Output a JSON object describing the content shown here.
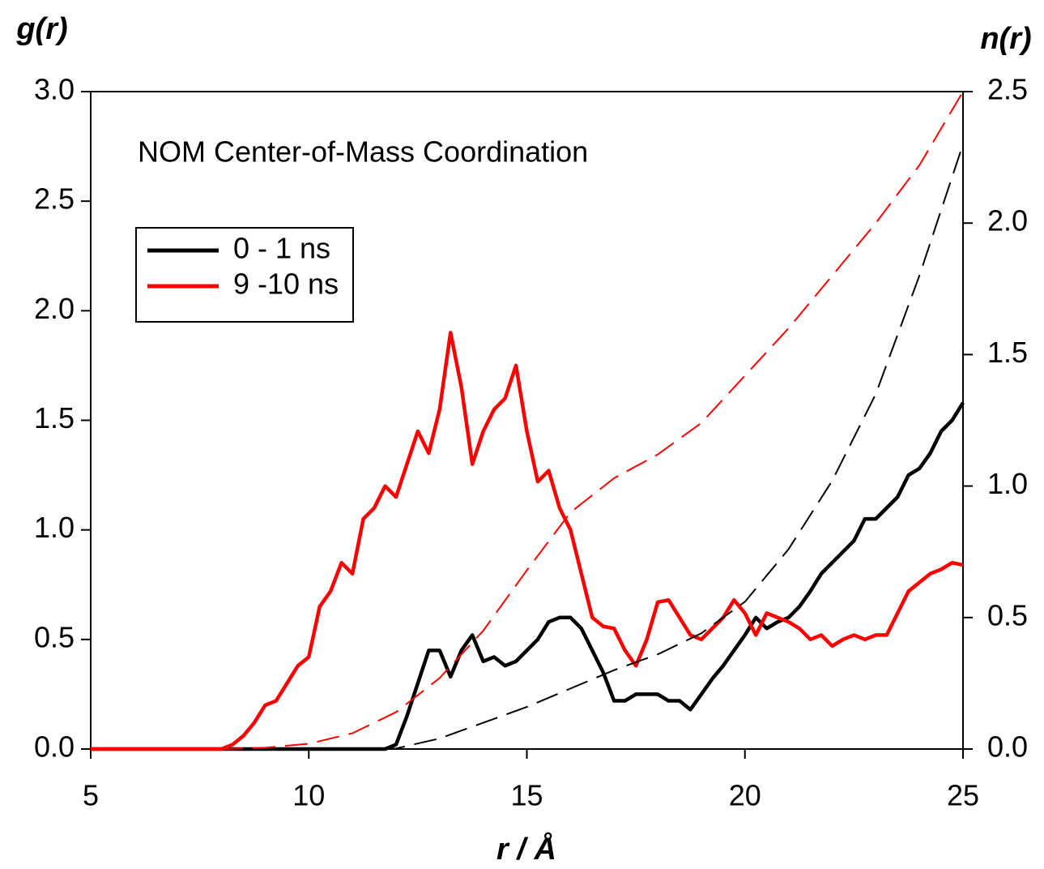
{
  "chart_data": {
    "type": "line",
    "title": "NOM Center-of-Mass Coordination",
    "y_label": "g(r)",
    "y2_label": "n(r)",
    "x_label": "r / Å",
    "xlim": [
      5,
      25
    ],
    "xticks": [
      5,
      10,
      15,
      20,
      25
    ],
    "ylim": [
      0,
      3
    ],
    "yticks": [
      {
        "value": 0,
        "label": "0.0"
      },
      {
        "value": 0.5,
        "label": "0.5"
      },
      {
        "value": 1,
        "label": "1.0"
      },
      {
        "value": 1.5,
        "label": "1.5"
      },
      {
        "value": 2,
        "label": "2.0"
      },
      {
        "value": 2.5,
        "label": "2.5"
      },
      {
        "value": 3,
        "label": "3.0"
      }
    ],
    "y2lim": [
      0,
      2.5
    ],
    "y2ticks": [
      {
        "value": 0,
        "label": "0.0"
      },
      {
        "value": 0.5,
        "label": "0.5"
      },
      {
        "value": 1,
        "label": "1.0"
      },
      {
        "value": 1.5,
        "label": "1.5"
      },
      {
        "value": 2,
        "label": "2.0"
      },
      {
        "value": 2.5,
        "label": "2.5"
      }
    ],
    "legend": "upper left",
    "series": [
      {
        "name": "0 - 1 ns",
        "color": "#000000",
        "dash": false,
        "x": [
          5,
          5.25,
          5.5,
          5.75,
          6,
          6.25,
          6.5,
          6.75,
          7,
          7.25,
          7.5,
          7.75,
          8,
          8.25,
          8.5,
          8.75,
          9,
          9.25,
          9.5,
          9.75,
          10,
          10.25,
          10.5,
          10.75,
          11,
          11.25,
          11.5,
          11.75,
          12,
          12.25,
          12.5,
          12.75,
          13,
          13.25,
          13.5,
          13.75,
          14,
          14.25,
          14.5,
          14.75,
          15,
          15.25,
          15.5,
          15.75,
          16,
          16.25,
          16.5,
          16.75,
          17,
          17.25,
          17.5,
          17.75,
          18,
          18.25,
          18.5,
          18.75,
          19,
          19.25,
          19.5,
          19.75,
          20,
          20.25,
          20.5,
          20.75,
          21,
          21.25,
          21.5,
          21.75,
          22,
          22.25,
          22.5,
          22.75,
          23,
          23.25,
          23.5,
          23.75,
          24,
          24.25,
          24.5,
          24.75,
          25
        ],
        "values": [
          0,
          0,
          0,
          0,
          0,
          0,
          0,
          0,
          0,
          0,
          0,
          0,
          0,
          0,
          0,
          0,
          0,
          0,
          0,
          0,
          0,
          0,
          0,
          0,
          0,
          0,
          0,
          0,
          0.02,
          0.15,
          0.3,
          0.45,
          0.45,
          0.33,
          0.45,
          0.52,
          0.4,
          0.42,
          0.38,
          0.4,
          0.45,
          0.5,
          0.58,
          0.6,
          0.6,
          0.55,
          0.45,
          0.35,
          0.22,
          0.22,
          0.25,
          0.25,
          0.25,
          0.22,
          0.22,
          0.18,
          0.25,
          0.32,
          0.38,
          0.45,
          0.52,
          0.6,
          0.55,
          0.58,
          0.6,
          0.65,
          0.72,
          0.8,
          0.85,
          0.9,
          0.95,
          1.05,
          1.05,
          1.1,
          1.15,
          1.25,
          1.28,
          1.35,
          1.45,
          1.5,
          1.58
        ]
      },
      {
        "name": "9 -10 ns",
        "color": "#ff0000",
        "dash": false,
        "x": [
          5,
          5.25,
          5.5,
          5.75,
          6,
          6.25,
          6.5,
          6.75,
          7,
          7.25,
          7.5,
          7.75,
          8,
          8.25,
          8.5,
          8.75,
          9,
          9.25,
          9.5,
          9.75,
          10,
          10.25,
          10.5,
          10.75,
          11,
          11.25,
          11.5,
          11.75,
          12,
          12.25,
          12.5,
          12.75,
          13,
          13.25,
          13.5,
          13.75,
          14,
          14.25,
          14.5,
          14.75,
          15,
          15.25,
          15.5,
          15.75,
          16,
          16.25,
          16.5,
          16.75,
          17,
          17.25,
          17.5,
          17.75,
          18,
          18.25,
          18.5,
          18.75,
          19,
          19.25,
          19.5,
          19.75,
          20,
          20.25,
          20.5,
          20.75,
          21,
          21.25,
          21.5,
          21.75,
          22,
          22.25,
          22.5,
          22.75,
          23,
          23.25,
          23.5,
          23.75,
          24,
          24.25,
          24.5,
          24.75,
          25
        ],
        "values": [
          0,
          0,
          0,
          0,
          0,
          0,
          0,
          0,
          0,
          0,
          0,
          0,
          0,
          0.02,
          0.06,
          0.12,
          0.2,
          0.22,
          0.3,
          0.38,
          0.42,
          0.65,
          0.72,
          0.85,
          0.8,
          1.05,
          1.1,
          1.2,
          1.15,
          1.3,
          1.45,
          1.35,
          1.55,
          1.9,
          1.65,
          1.3,
          1.45,
          1.55,
          1.6,
          1.75,
          1.45,
          1.22,
          1.27,
          1.1,
          1.0,
          0.8,
          0.6,
          0.56,
          0.55,
          0.45,
          0.38,
          0.5,
          0.67,
          0.68,
          0.6,
          0.52,
          0.5,
          0.55,
          0.6,
          0.68,
          0.62,
          0.52,
          0.62,
          0.6,
          0.58,
          0.55,
          0.5,
          0.52,
          0.47,
          0.5,
          0.52,
          0.5,
          0.52,
          0.52,
          0.62,
          0.72,
          0.76,
          0.8,
          0.82,
          0.85,
          0.84
        ]
      },
      {
        "color": "#000000",
        "dash": true,
        "axis": "y2",
        "x": [
          5,
          6,
          7,
          8,
          9,
          10,
          11,
          12,
          13,
          14,
          15,
          16,
          17,
          18,
          19,
          20,
          21,
          22,
          23,
          24,
          25
        ],
        "values": [
          0,
          0,
          0,
          0,
          0,
          0,
          0,
          0.002,
          0.04,
          0.1,
          0.16,
          0.23,
          0.3,
          0.36,
          0.44,
          0.56,
          0.76,
          1.02,
          1.35,
          1.8,
          2.3
        ]
      },
      {
        "color": "#ff0000",
        "dash": true,
        "axis": "y2",
        "x": [
          5,
          6,
          7,
          8,
          9,
          10,
          11,
          12,
          13,
          14,
          15,
          16,
          17,
          18,
          19,
          20,
          21,
          22,
          23,
          24,
          25
        ],
        "values": [
          0,
          0,
          0,
          0,
          0.005,
          0.02,
          0.06,
          0.14,
          0.27,
          0.45,
          0.68,
          0.9,
          1.03,
          1.12,
          1.24,
          1.42,
          1.6,
          1.8,
          2.0,
          2.22,
          2.5
        ]
      }
    ]
  }
}
